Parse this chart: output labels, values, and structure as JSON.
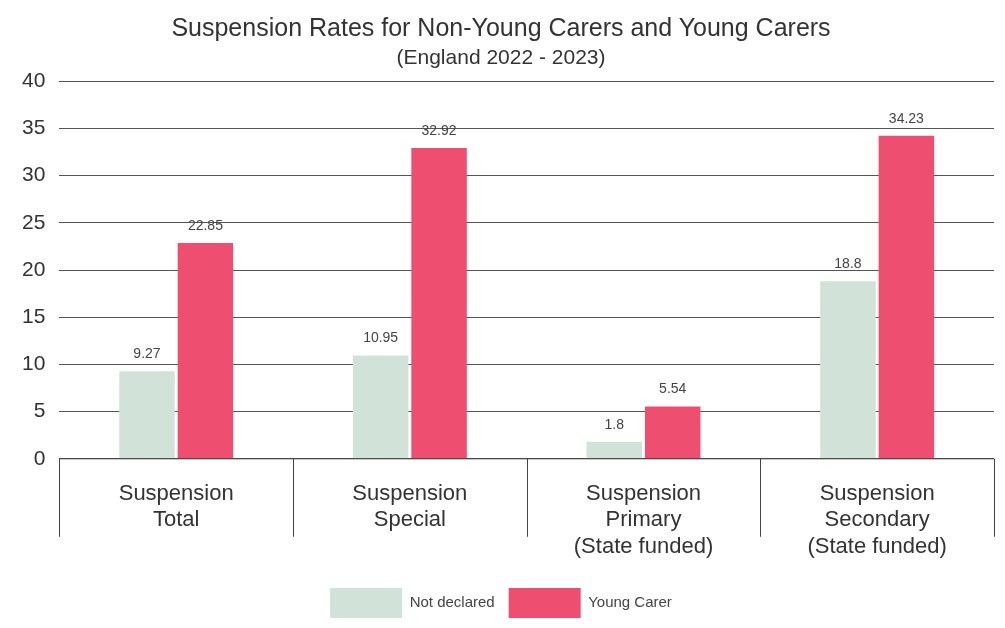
{
  "chart_data": {
    "type": "bar",
    "title": "Suspension Rates for Non-Young Carers and Young Carers",
    "subtitle": "(England 2022 - 2023)",
    "categories": [
      "Suspension\nTotal",
      "Suspension\nSpecial",
      "Suspension\nPrimary\n(State funded)",
      "Suspension\nSecondary\n(State funded)"
    ],
    "series": [
      {
        "name": "Not declared",
        "color": "#d1e3d9",
        "values": [
          9.27,
          10.95,
          1.8,
          18.8
        ]
      },
      {
        "name": "Young Carer",
        "color": "#ee4f70",
        "values": [
          22.85,
          32.92,
          5.54,
          34.23
        ]
      }
    ],
    "ylim": [
      0,
      40
    ],
    "yticks": [
      0,
      5,
      10,
      15,
      20,
      25,
      30,
      35,
      40
    ],
    "grid": "y",
    "legend": "bottom",
    "data_labels": true
  }
}
